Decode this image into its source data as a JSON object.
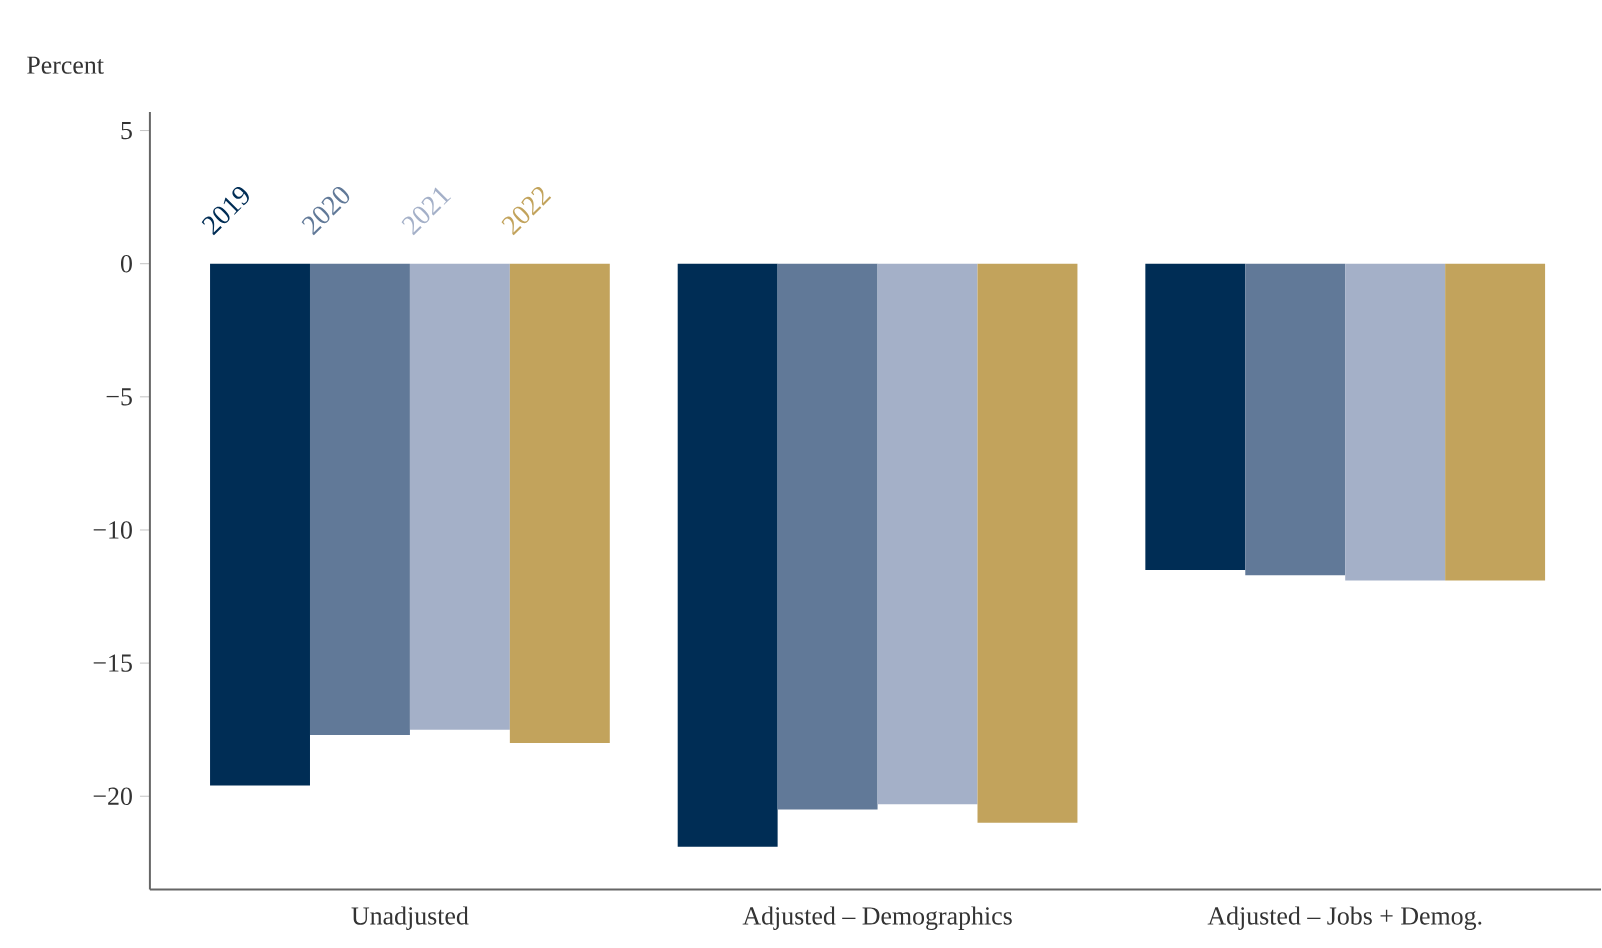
{
  "chart_data": {
    "type": "bar",
    "ylabel": "Percent",
    "categories": [
      "Unadjusted",
      "Adjusted – Demographics",
      "Adjusted – Jobs + Demog."
    ],
    "series": [
      {
        "name": "2019",
        "color": "#002d55",
        "values": [
          -19.6,
          -21.9,
          -11.5
        ]
      },
      {
        "name": "2020",
        "color": "#617998",
        "values": [
          -17.7,
          -20.5,
          -11.7
        ]
      },
      {
        "name": "2021",
        "color": "#a4b0c8",
        "values": [
          -17.5,
          -20.3,
          -11.9
        ]
      },
      {
        "name": "2022",
        "color": "#c2a35c",
        "values": [
          -18.0,
          -21.0,
          -11.9
        ]
      }
    ],
    "ylim": [
      -23.5,
      5.7
    ],
    "yticks": [
      5,
      0,
      {
        "value": -5,
        "label": "−5"
      },
      {
        "value": -10,
        "label": "−10"
      },
      {
        "value": -15,
        "label": "−15"
      },
      {
        "value": -20,
        "label": "−20"
      }
    ],
    "grid": false,
    "legend": false
  }
}
